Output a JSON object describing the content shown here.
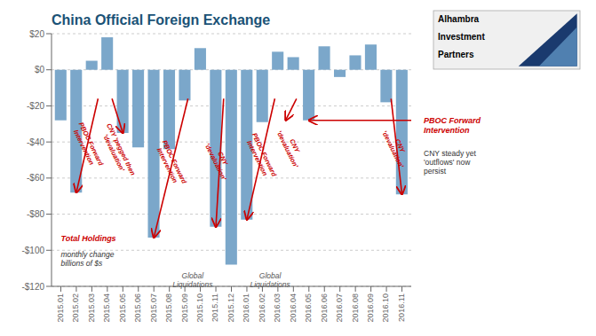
{
  "chart_data": {
    "type": "bar",
    "title": "China Official Foreign Exchange",
    "categories": [
      "2015.01",
      "2015.02",
      "2015.03",
      "2015.04",
      "2015.05",
      "2015.06",
      "2015.07",
      "2015.08",
      "2015.09",
      "2015.10",
      "2015.11",
      "2015.12",
      "2016.01",
      "2016.02",
      "2016.03",
      "2016.04",
      "2016.05",
      "2016.06",
      "2016.07",
      "2016.08",
      "2016.09",
      "2016.10",
      "2016.11"
    ],
    "values": [
      -28,
      -68,
      5,
      18,
      -35,
      -43,
      -93,
      -44,
      -17,
      12,
      -87,
      -108,
      -83,
      -29,
      10,
      7,
      -28,
      13,
      -4,
      8,
      14,
      -18,
      -69
    ],
    "color": "#7ba7ca",
    "ylim": [
      -120,
      20
    ],
    "yticks": [
      {
        "value": 20,
        "label": "$20"
      },
      {
        "value": 0,
        "label": "$0"
      },
      {
        "value": -20,
        "label": "-$20"
      },
      {
        "value": -40,
        "label": "-$40"
      },
      {
        "value": -60,
        "label": "-$60"
      },
      {
        "value": -80,
        "label": "-$80"
      },
      {
        "value": -100,
        "label": "-$100"
      },
      {
        "value": -120,
        "label": "-$120"
      }
    ],
    "grid": true,
    "annotations": [
      {
        "text": "PBOC Forward\nIntervention",
        "color": "#cc0000"
      },
      {
        "text": "CNY 'pegged then\n'devaluation'",
        "color": "#cc0000"
      },
      {
        "text": "PBOC Forward\nIntervention",
        "color": "#cc0000"
      },
      {
        "text": "CNY\n'devaluation'",
        "color": "#cc0000"
      },
      {
        "text": "PBOC Forward\nIntervention",
        "color": "#cc0000"
      },
      {
        "text": "CNY\n'devaluation'",
        "color": "#cc0000"
      },
      {
        "text": "CNY\n'devaluation'",
        "color": "#cc0000"
      },
      {
        "text": "Total Holdings",
        "color": "#cc0000"
      },
      {
        "text": "monthly change\nbillions of $s",
        "color": "#333333"
      },
      {
        "text": "Global\nLiquidations",
        "color": "#555555"
      },
      {
        "text": "Global\nLiquidations",
        "color": "#555555"
      },
      {
        "text": "PBOC Forward\nIntervention",
        "color": "#cc0000"
      },
      {
        "text": "CNY steady yet\n'outflows' now\npersist",
        "color": "#333333"
      },
      {
        "text": "Alhambra",
        "color": "#000000"
      },
      {
        "text": "Investment",
        "color": "#000000"
      },
      {
        "text": "Partners",
        "color": "#000000"
      }
    ]
  }
}
